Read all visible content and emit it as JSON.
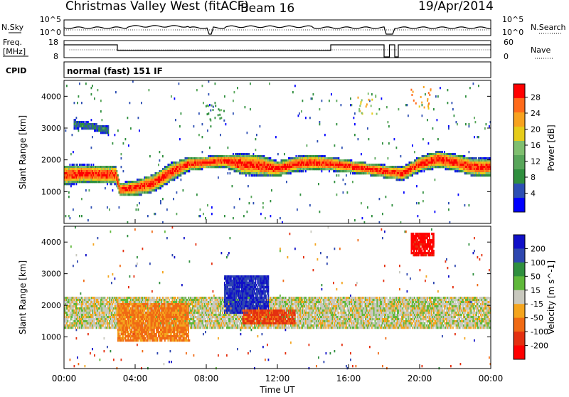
{
  "header": {
    "station": "Christmas Valley West (fitACF)",
    "beam": "Beam 16",
    "date": "19/Apr/2014"
  },
  "noise_panel": {
    "left_label": "N.Sky",
    "left_ticks": [
      "10^5",
      "10^0"
    ],
    "right_ticks": [
      "10^5",
      "10^0"
    ],
    "right_label": "N.Search"
  },
  "freq_panel": {
    "left_label_1": "Freq.",
    "left_label_2": "[MHz]",
    "left_ticks": [
      "18",
      "8"
    ],
    "right_ticks": [
      "60",
      "0"
    ],
    "right_label": "Nave"
  },
  "cpid": {
    "label": "CPID",
    "text": "normal (fast) 151 IF"
  },
  "axes": {
    "ylabel": "Slant Range [km]",
    "xlabel": "Time UT",
    "yticks": [
      "4000",
      "3000",
      "2000",
      "1000"
    ],
    "xticks": [
      "00:00",
      "04:00",
      "08:00",
      "12:00",
      "16:00",
      "20:00",
      "00:00"
    ]
  },
  "colors": {
    "power": [
      "#0000ff",
      "#2d4fb4",
      "#2f8f3e",
      "#58a65a",
      "#7fbf6f",
      "#e6cc1a",
      "#f7a21f",
      "#ff6a1a",
      "#ff0000"
    ],
    "velocity": [
      "#1010c8",
      "#2e47b0",
      "#2f8f3e",
      "#5fb83a",
      "#c8c8be",
      "#f4a51e",
      "#f06a14",
      "#e43010",
      "#ff0000"
    ],
    "ground": "#c8c8be"
  },
  "chart_data": [
    {
      "type": "heatmap",
      "title": "Power",
      "colorbar_label": "Power [dB]",
      "colorbar_ticks": [
        "28",
        "24",
        "20",
        "16",
        "12",
        "8",
        "4"
      ],
      "clim": [
        0,
        30
      ],
      "x_range_hours": [
        0,
        24
      ],
      "ylim": [
        0,
        4500
      ],
      "xticks": [
        "00:00",
        "04:00",
        "08:00",
        "12:00",
        "16:00",
        "20:00",
        "00:00"
      ],
      "yticks": [
        4000,
        3000,
        2000,
        1000
      ],
      "bands": [
        {
          "name": "main band",
          "t": [
            0,
            1,
            2,
            2.9,
            3.1,
            4,
            5,
            6,
            7,
            8,
            9,
            10,
            11,
            12,
            13,
            14,
            15,
            17,
            19,
            20,
            21,
            22,
            23,
            24
          ],
          "center": [
            1550,
            1600,
            1580,
            1560,
            1100,
            1150,
            1300,
            1650,
            1900,
            1950,
            2000,
            1900,
            1850,
            1750,
            1900,
            1950,
            1900,
            1750,
            1600,
            1900,
            2050,
            1950,
            1800,
            1800
          ],
          "width": [
            650,
            600,
            600,
            600,
            450,
            500,
            600,
            600,
            450,
            400,
            400,
            700,
            700,
            500,
            500,
            500,
            450,
            400,
            450,
            500,
            550,
            550,
            600,
            600
          ],
          "peak_db": 28
        },
        {
          "name": "upper patch",
          "t": [
            0.5,
            1.5,
            2.5
          ],
          "center": [
            3150,
            3100,
            2950
          ],
          "width": [
            300,
            250,
            300
          ],
          "peak_db": 8
        }
      ],
      "sparse_echoes": [
        {
          "t": 8.5,
          "range": 3400,
          "db": 10
        },
        {
          "t": 17,
          "range": 3800,
          "db": 18
        },
        {
          "t": 20,
          "range": 4000,
          "db": 22
        }
      ]
    },
    {
      "type": "heatmap",
      "title": "Velocity",
      "colorbar_label": "Velocity [m s^-1]",
      "colorbar_ticks": [
        "200",
        "100",
        "50",
        "15",
        "-15",
        "-50",
        "-100",
        "-200"
      ],
      "clim": [
        -250,
        250
      ],
      "x_range_hours": [
        0,
        24
      ],
      "ylim": [
        0,
        4500
      ],
      "xticks": [
        "00:00",
        "04:00",
        "08:00",
        "12:00",
        "16:00",
        "20:00",
        "00:00"
      ],
      "yticks": [
        4000,
        3000,
        2000,
        1000
      ],
      "regions": [
        {
          "name": "ground scatter",
          "t0": 0,
          "t1": 24,
          "r0": 1300,
          "r1": 2300,
          "v": 0
        },
        {
          "name": "negative flow",
          "t0": 3,
          "t1": 7,
          "r0": 900,
          "r1": 2100,
          "v": -60
        },
        {
          "name": "positive flow",
          "t0": 9,
          "t1": 11.5,
          "r0": 1800,
          "r1": 3000,
          "v": 150
        },
        {
          "name": "strong negative",
          "t0": 10,
          "t1": 13,
          "r0": 1400,
          "r1": 1900,
          "v": -110
        },
        {
          "name": "red patch",
          "t0": 19.5,
          "t1": 20.8,
          "r0": 3600,
          "r1": 4300,
          "v": -220
        }
      ]
    }
  ]
}
